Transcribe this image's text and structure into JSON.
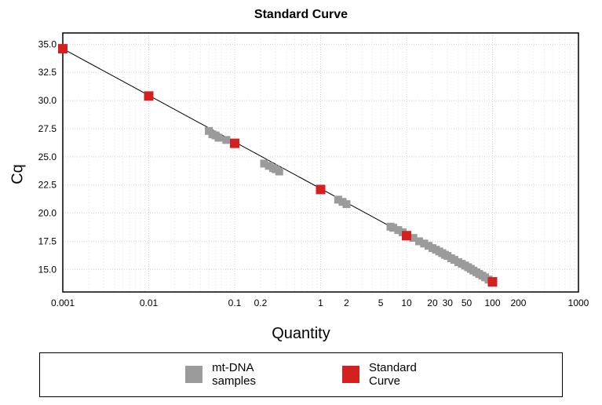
{
  "chart": {
    "type": "scatter",
    "title": "Standard Curve",
    "ylabel": "Cq",
    "xlabel": "Quantity",
    "title_fontsize": 16,
    "label_fontsize": 20,
    "tick_fontsize": 12,
    "background_color": "#ffffff",
    "plot_border_color": "#000000",
    "grid_major_color": "#d0d0d0",
    "grid_minor_color": "#e3e3e3",
    "grid_style": "dotted",
    "x_scale": "log",
    "x_major_ticks": [
      0.001,
      0.01,
      0.1,
      1,
      10,
      100,
      1000
    ],
    "x_minor_labeled": [
      0.2,
      2,
      5,
      20,
      30,
      50,
      200
    ],
    "ylim": [
      13,
      36
    ],
    "y_ticks": [
      15.0,
      17.5,
      20.0,
      22.5,
      25.0,
      27.5,
      30.0,
      32.5,
      35.0
    ],
    "line": {
      "x1": 0.001,
      "y1": 34.6,
      "x2": 100,
      "y2": 13.9,
      "color": "#000000",
      "width": 1
    },
    "series": [
      {
        "name": "mt-DNA samples",
        "marker": "square",
        "color": "#9b9b9b",
        "size": 10,
        "points": [
          {
            "x": 0.05,
            "y": 27.3
          },
          {
            "x": 0.055,
            "y": 27.0
          },
          {
            "x": 0.06,
            "y": 26.9
          },
          {
            "x": 0.065,
            "y": 26.7
          },
          {
            "x": 0.08,
            "y": 26.5
          },
          {
            "x": 0.22,
            "y": 24.4
          },
          {
            "x": 0.25,
            "y": 24.2
          },
          {
            "x": 0.28,
            "y": 24.0
          },
          {
            "x": 0.3,
            "y": 23.9
          },
          {
            "x": 0.33,
            "y": 23.7
          },
          {
            "x": 1.6,
            "y": 21.2
          },
          {
            "x": 1.8,
            "y": 21.0
          },
          {
            "x": 2.0,
            "y": 20.8
          },
          {
            "x": 6.5,
            "y": 18.8
          },
          {
            "x": 7.0,
            "y": 18.7
          },
          {
            "x": 8.0,
            "y": 18.5
          },
          {
            "x": 9.0,
            "y": 18.3
          },
          {
            "x": 12,
            "y": 17.8
          },
          {
            "x": 14,
            "y": 17.5
          },
          {
            "x": 16,
            "y": 17.3
          },
          {
            "x": 18,
            "y": 17.1
          },
          {
            "x": 20,
            "y": 16.9
          },
          {
            "x": 22,
            "y": 16.75
          },
          {
            "x": 24,
            "y": 16.6
          },
          {
            "x": 26,
            "y": 16.45
          },
          {
            "x": 28,
            "y": 16.3
          },
          {
            "x": 30,
            "y": 16.2
          },
          {
            "x": 33,
            "y": 16.0
          },
          {
            "x": 36,
            "y": 15.85
          },
          {
            "x": 40,
            "y": 15.65
          },
          {
            "x": 44,
            "y": 15.5
          },
          {
            "x": 48,
            "y": 15.35
          },
          {
            "x": 52,
            "y": 15.2
          },
          {
            "x": 56,
            "y": 15.05
          },
          {
            "x": 60,
            "y": 14.9
          },
          {
            "x": 65,
            "y": 14.75
          },
          {
            "x": 70,
            "y": 14.6
          },
          {
            "x": 76,
            "y": 14.45
          },
          {
            "x": 82,
            "y": 14.3
          },
          {
            "x": 90,
            "y": 14.1
          }
        ]
      },
      {
        "name": "Standard Curve",
        "marker": "square",
        "color": "#d52020",
        "size": 12,
        "points": [
          {
            "x": 0.001,
            "y": 34.6
          },
          {
            "x": 0.01,
            "y": 30.4
          },
          {
            "x": 0.1,
            "y": 26.2
          },
          {
            "x": 1,
            "y": 22.1
          },
          {
            "x": 10,
            "y": 18.0
          },
          {
            "x": 100,
            "y": 13.9
          }
        ]
      }
    ],
    "legend": {
      "items": [
        {
          "label_line1": "mt-DNA",
          "label_line2": "samples",
          "color": "#9b9b9b"
        },
        {
          "label_line1": "Standard",
          "label_line2": "Curve",
          "color": "#d52020"
        }
      ],
      "border_color": "#000000"
    }
  }
}
